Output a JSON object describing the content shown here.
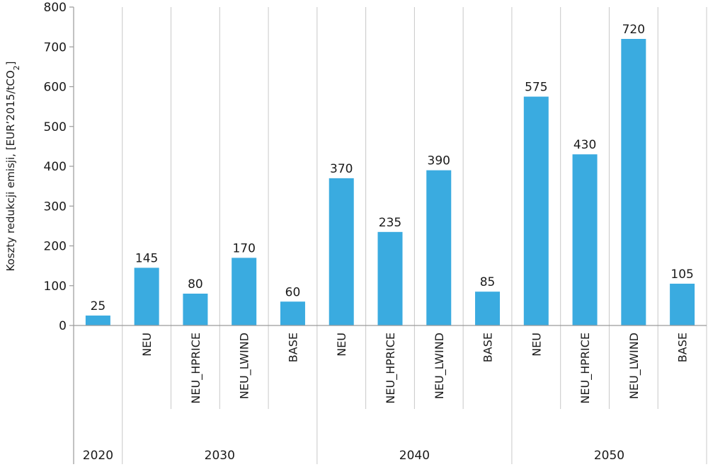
{
  "chart_data": {
    "type": "bar",
    "ylabel_main": "Koszty redukcji emisji, [EUR’2015/tCO",
    "ylabel_sub": "2",
    "ylabel_end": "]",
    "ylim": [
      0,
      800
    ],
    "yticks": [
      0,
      100,
      200,
      300,
      400,
      500,
      600,
      700,
      800
    ],
    "grid": true,
    "color": "#3aabe0",
    "groups": [
      {
        "year": "2020",
        "bars": [
          {
            "label": "",
            "value": 25
          }
        ]
      },
      {
        "year": "2030",
        "bars": [
          {
            "label": "NEU",
            "value": 145
          },
          {
            "label": "NEU_HPRICE",
            "value": 80
          },
          {
            "label": "NEU_LWIND",
            "value": 170
          },
          {
            "label": "BASE",
            "value": 60
          }
        ]
      },
      {
        "year": "2040",
        "bars": [
          {
            "label": "NEU",
            "value": 370
          },
          {
            "label": "NEU_HPRICE",
            "value": 235
          },
          {
            "label": "NEU_LWIND",
            "value": 390
          },
          {
            "label": "BASE",
            "value": 85
          }
        ]
      },
      {
        "year": "2050",
        "bars": [
          {
            "label": "NEU",
            "value": 575
          },
          {
            "label": "NEU_HPRICE",
            "value": 430
          },
          {
            "label": "NEU_LWIND",
            "value": 720
          },
          {
            "label": "BASE",
            "value": 105
          }
        ]
      }
    ]
  }
}
